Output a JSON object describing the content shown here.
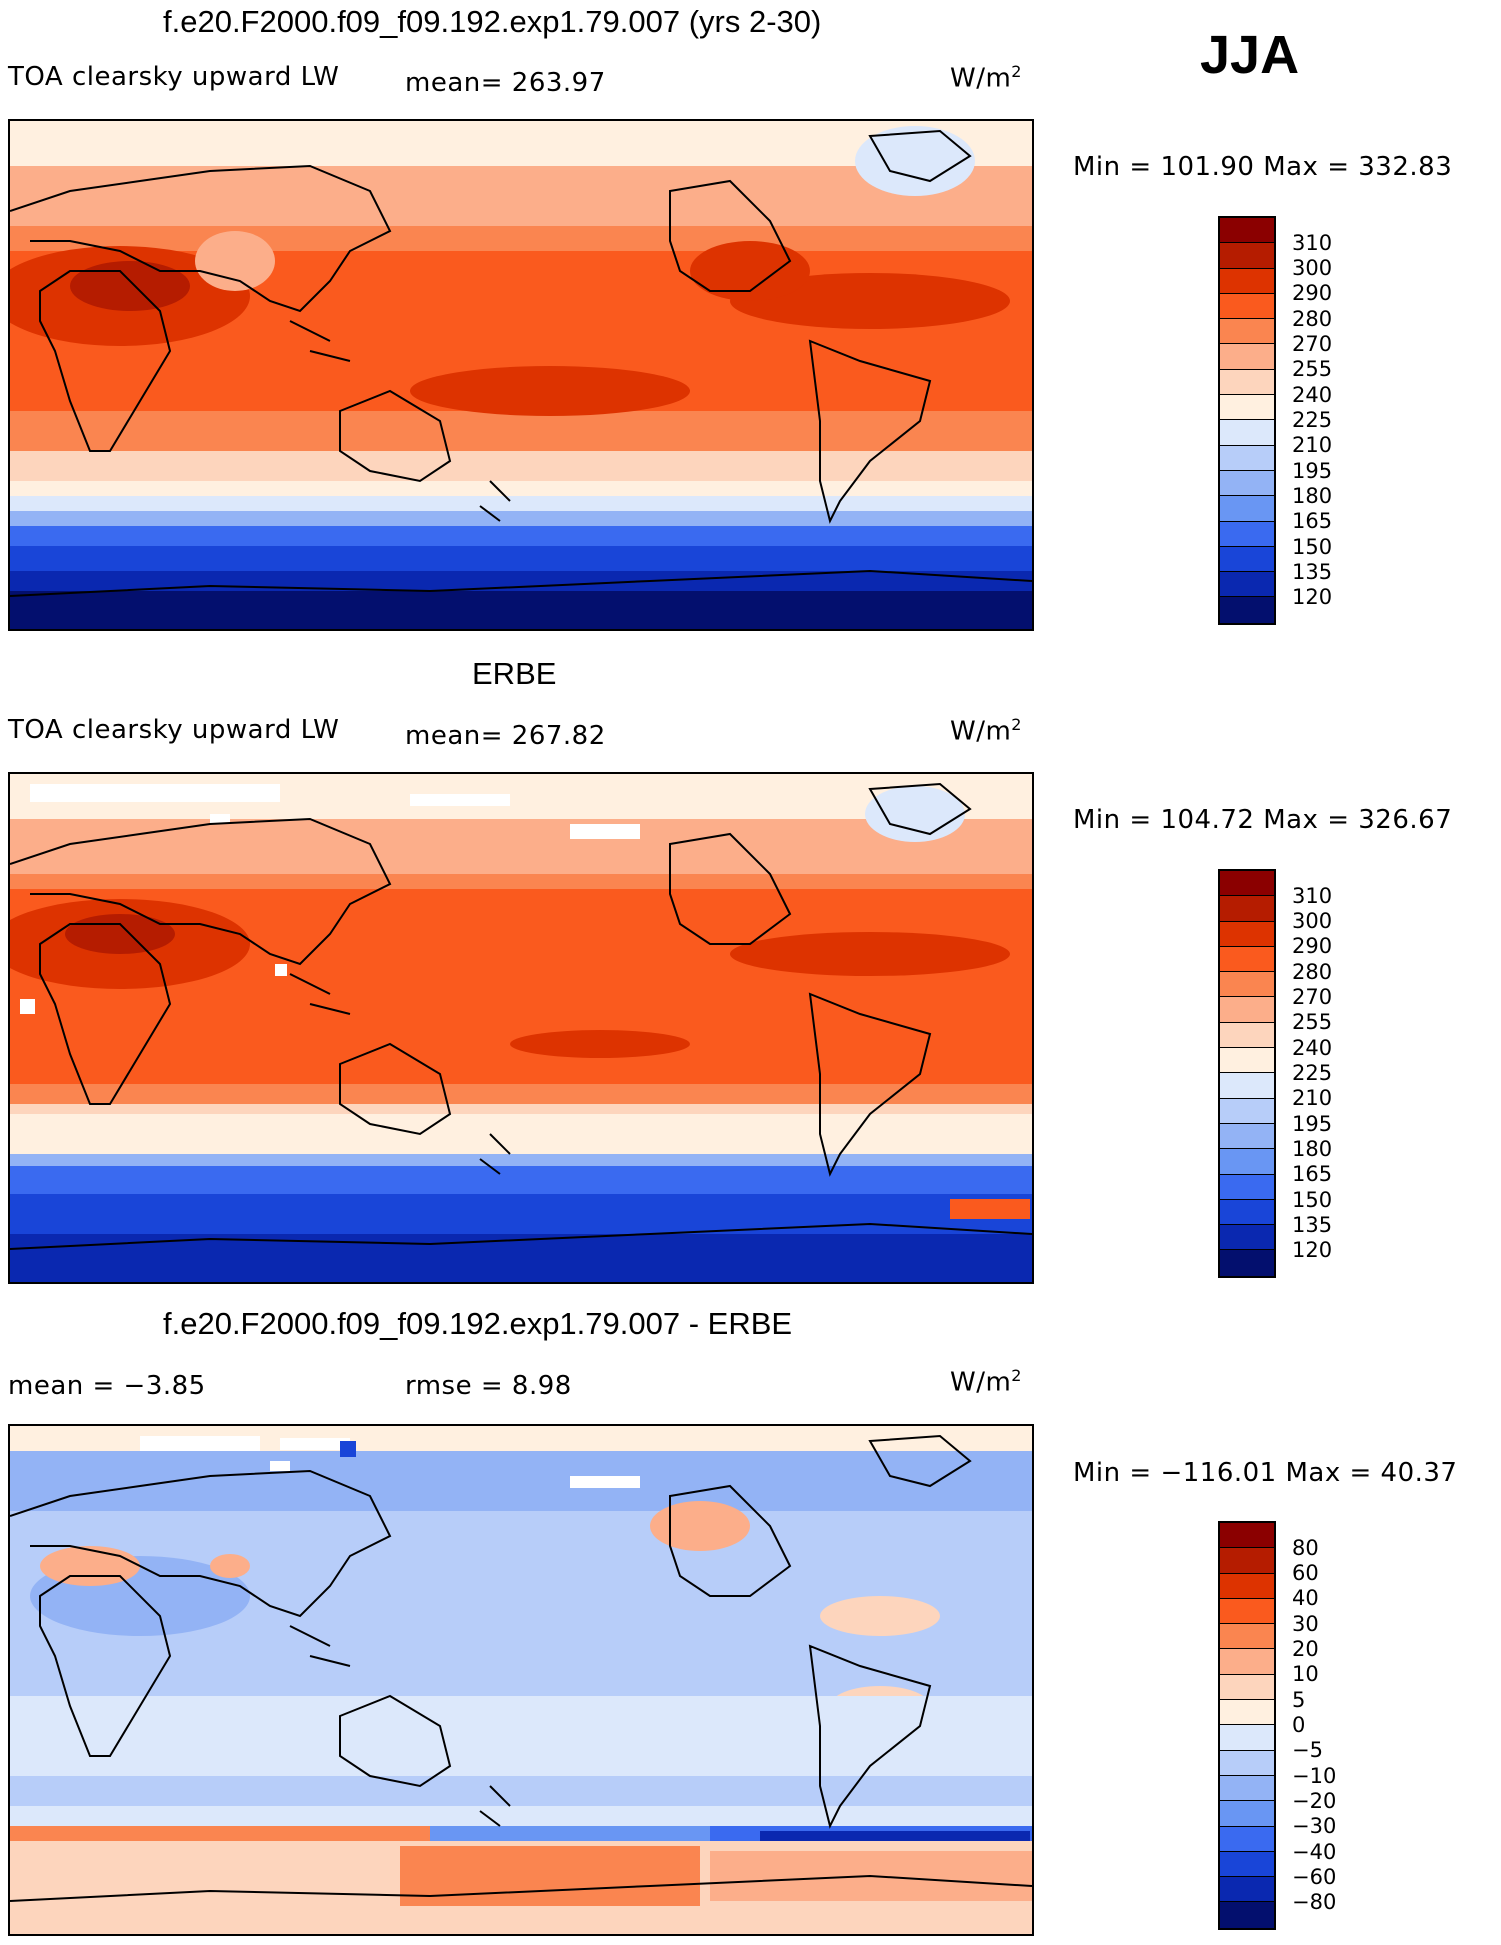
{
  "season": "JJA",
  "units": "W/m",
  "units_exp": "2",
  "panel1": {
    "title": "f.e20.F2000.f09_f09.192.exp1.79.007 (yrs 2-30)",
    "variable": "TOA clearsky upward LW",
    "mean_text": "mean= 263.97",
    "minmax": "Min = 101.90 Max = 332.83"
  },
  "panel2": {
    "title": "ERBE",
    "variable": "TOA clearsky upward LW",
    "mean_text": "mean= 267.82",
    "minmax": "Min = 104.72 Max = 326.67"
  },
  "panel3": {
    "title": "f.e20.F2000.f09_f09.192.exp1.79.007 - ERBE",
    "mean_text": "mean =   −3.85",
    "rmse_text": "rmse =    8.98",
    "minmax": "Min = −116.01 Max =  40.37"
  },
  "levels_abs": [
    "310",
    "300",
    "290",
    "280",
    "270",
    "255",
    "240",
    "225",
    "210",
    "195",
    "180",
    "165",
    "150",
    "135",
    "120"
  ],
  "levels_diff": [
    "80",
    "60",
    "40",
    "30",
    "20",
    "10",
    "5",
    "0",
    "−5",
    "−10",
    "−20",
    "−30",
    "−40",
    "−60",
    "−80"
  ],
  "colors": [
    "#8b0000",
    "#b51c00",
    "#dd3300",
    "#fa5a1e",
    "#fa8550",
    "#fcae8a",
    "#fdd5bd",
    "#fff0e0",
    "#dce8fb",
    "#b7cdf9",
    "#93b3f5",
    "#6996f3",
    "#3a6af0",
    "#1945d8",
    "#0a28b0",
    "#030f6e"
  ]
}
